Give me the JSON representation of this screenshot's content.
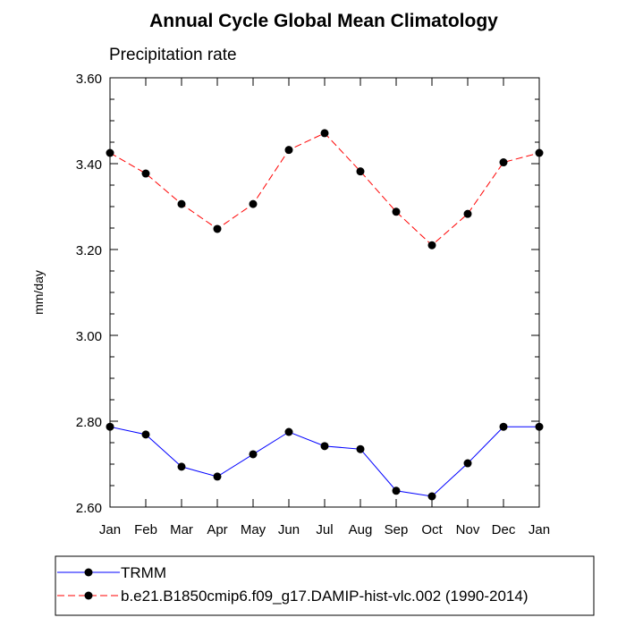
{
  "chart_data": {
    "type": "line",
    "title": "Annual Cycle Global Mean Climatology",
    "subtitle": "Precipitation rate",
    "xlabel": "",
    "ylabel": "mm/day",
    "ylim": [
      2.6,
      3.6
    ],
    "yticks": [
      "2.60",
      "2.80",
      "3.00",
      "3.20",
      "3.40",
      "3.60"
    ],
    "categories": [
      "Jan",
      "Feb",
      "Mar",
      "Apr",
      "May",
      "Jun",
      "Jul",
      "Aug",
      "Sep",
      "Oct",
      "Nov",
      "Dec",
      "Jan"
    ],
    "grid": false,
    "legend_placement": "bottom",
    "series": [
      {
        "name": "TRMM",
        "color": "#0000ff",
        "dash": "solid",
        "values": [
          2.787,
          2.769,
          2.694,
          2.671,
          2.723,
          2.775,
          2.742,
          2.735,
          2.638,
          2.625,
          2.702,
          2.787,
          2.787
        ]
      },
      {
        "name": "b.e21.B1850cmip6.f09_g17.DAMIP-hist-vlc.002 (1990-2014)",
        "color": "#ff0000",
        "dash": "dashed",
        "values": [
          3.425,
          3.377,
          3.306,
          3.248,
          3.306,
          3.432,
          3.471,
          3.382,
          3.288,
          3.21,
          3.283,
          3.403,
          3.425
        ]
      }
    ]
  }
}
